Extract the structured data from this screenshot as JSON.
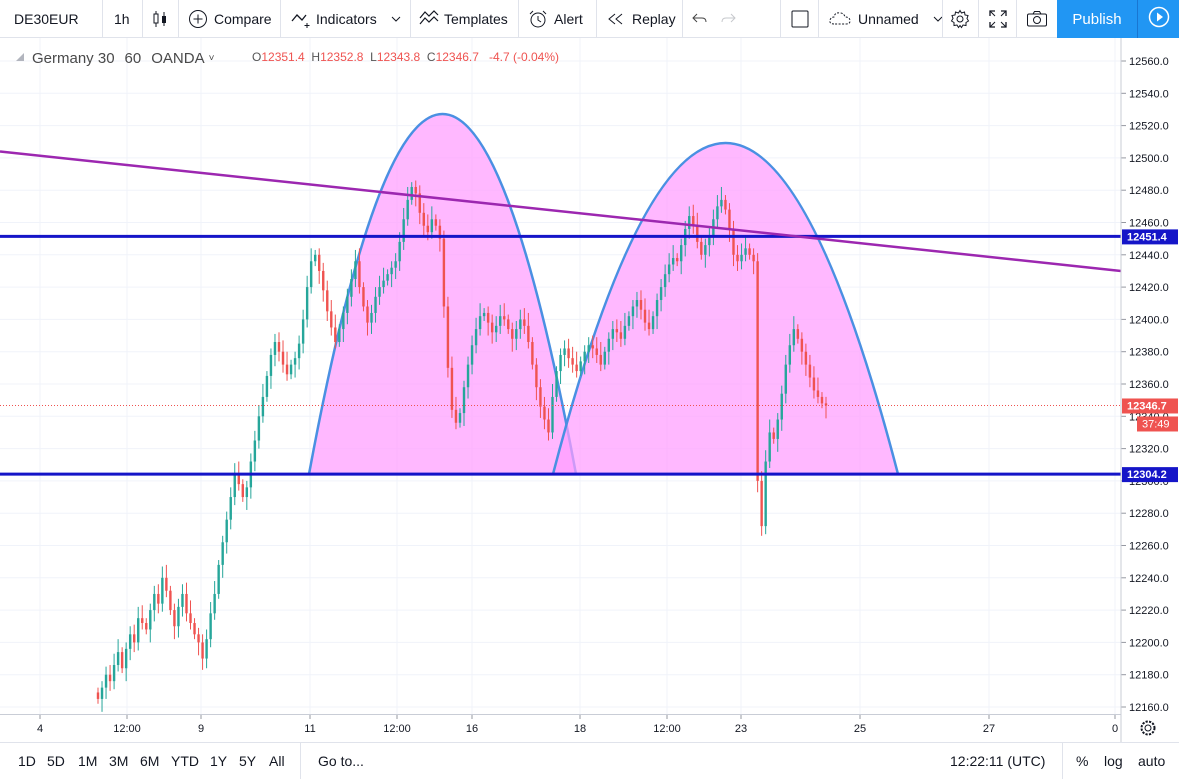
{
  "toolbar": {
    "symbol": "DE30EUR",
    "interval": "1h",
    "compare_label": "Compare",
    "indicators_label": "Indicators",
    "templates_label": "Templates",
    "alert_label": "Alert",
    "replay_label": "Replay",
    "layout_name": "Unnamed",
    "publish_label": "Publish"
  },
  "legend": {
    "name": "Germany 30",
    "interval": "60",
    "exchange": "OANDA",
    "o_key": "O",
    "o_val": "12351.4",
    "h_key": "H",
    "h_val": "12352.8",
    "l_key": "L",
    "l_val": "12343.8",
    "c_key": "C",
    "c_val": "12346.7",
    "change": "-4.7 (-0.04%)"
  },
  "price_axis": {
    "ticks": [
      "12560.0",
      "12540.0",
      "12520.0",
      "12500.0",
      "12480.0",
      "12460.0",
      "12440.0",
      "12420.0",
      "12400.0",
      "12380.0",
      "12360.0",
      "12340.0",
      "12320.0",
      "12300.0",
      "12280.0",
      "12260.0",
      "12240.0",
      "12220.0",
      "12200.0",
      "12180.0",
      "12160.0"
    ],
    "labels": {
      "resistance": "12451.4",
      "support": "12304.2",
      "last_price": "12346.7",
      "countdown": "37:49"
    }
  },
  "time_axis": {
    "ticks": [
      "4",
      "12:00",
      "9",
      "11",
      "12:00",
      "16",
      "18",
      "12:00",
      "23",
      "25",
      "27",
      "0"
    ]
  },
  "bottom": {
    "ranges": [
      "1D",
      "5D",
      "1M",
      "3M",
      "6M",
      "YTD",
      "1Y",
      "5Y",
      "All"
    ],
    "goto_label": "Go to...",
    "clock": "12:22:11 (UTC)",
    "percent_label": "%",
    "log_label": "log",
    "auto_label": "auto"
  },
  "chart_data": {
    "type": "candlestick",
    "symbol": "DE30EUR",
    "ylim": [
      12155,
      12570
    ],
    "horizontal_lines": [
      12451.4,
      12304.2
    ],
    "last_price": 12346.7,
    "trendline": [
      [
        0,
        12504
      ],
      [
        1121,
        12430
      ]
    ],
    "colors": {
      "up": "#26a69a",
      "down": "#ef5350",
      "hline": "#1515c8",
      "trend": "#9c27b0",
      "shape_fill": "#ff9cff",
      "shape_stroke": "#4a90e2"
    },
    "closes": [
      12165,
      12172,
      12180,
      12176,
      12186,
      12194,
      12184,
      12196,
      12205,
      12200,
      12215,
      12212,
      12208,
      12220,
      12230,
      12224,
      12240,
      12232,
      12220,
      12210,
      12222,
      12230,
      12218,
      12212,
      12205,
      12200,
      12190,
      12202,
      12218,
      12230,
      12248,
      12262,
      12276,
      12290,
      12304,
      12298,
      12290,
      12296,
      12312,
      12325,
      12340,
      12352,
      12365,
      12378,
      12386,
      12380,
      12372,
      12366,
      12372,
      12376,
      12385,
      12400,
      12420,
      12436,
      12440,
      12430,
      12418,
      12405,
      12395,
      12386,
      12394,
      12404,
      12414,
      12425,
      12436,
      12420,
      12408,
      12398,
      12404,
      12414,
      12420,
      12424,
      12428,
      12432,
      12436,
      12448,
      12462,
      12474,
      12482,
      12478,
      12466,
      12458,
      12454,
      12462,
      12458,
      12450,
      12408,
      12370,
      12344,
      12336,
      12342,
      12358,
      12372,
      12384,
      12394,
      12402,
      12404,
      12398,
      12392,
      12396,
      12402,
      12400,
      12394,
      12388,
      12394,
      12400,
      12396,
      12386,
      12372,
      12358,
      12346,
      12338,
      12330,
      12352,
      12368,
      12378,
      12382,
      12376,
      12372,
      12368,
      12374,
      12380,
      12384,
      12382,
      12378,
      12372,
      12380,
      12388,
      12394,
      12392,
      12388,
      12396,
      12402,
      12408,
      12412,
      12406,
      12398,
      12394,
      12402,
      12412,
      12420,
      12428,
      12434,
      12438,
      12436,
      12446,
      12456,
      12464,
      12458,
      12448,
      12440,
      12446,
      12452,
      12462,
      12470,
      12474,
      12468,
      12456,
      12440,
      12436,
      12440,
      12444,
      12440,
      12436,
      12300,
      12272,
      12312,
      12330,
      12326,
      12338,
      12354,
      12372,
      12384,
      12394,
      12388,
      12380,
      12372,
      12364,
      12356,
      12352,
      12348,
      12346.7
    ]
  }
}
